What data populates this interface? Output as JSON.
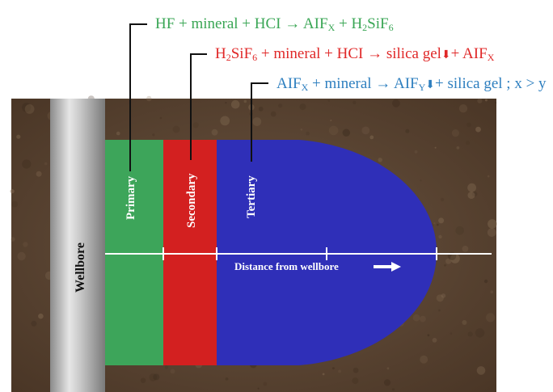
{
  "colors": {
    "green": "#3da55a",
    "red": "#d32020",
    "blue": "#2f2fb8",
    "eq_green": "#3aa655",
    "eq_red": "#e02828",
    "eq_blue": "#2e7fbf",
    "rock": "#5d4632",
    "wellbore": "#bdbdbd"
  },
  "equations": [
    {
      "name": "primary-reaction",
      "color": "#3aa655",
      "parts": [
        {
          "t": "HF + mineral + HCI  "
        },
        {
          "t": "→",
          "c": "arrow"
        },
        {
          "t": "  AIF"
        },
        {
          "t": "X",
          "c": "sub"
        },
        {
          "t": " + H"
        },
        {
          "t": "2",
          "c": "sub"
        },
        {
          "t": "SiF"
        },
        {
          "t": "6",
          "c": "sub"
        }
      ]
    },
    {
      "name": "secondary-reaction",
      "color": "#e02828",
      "parts": [
        {
          "t": "H"
        },
        {
          "t": "2",
          "c": "sub"
        },
        {
          "t": "SiF"
        },
        {
          "t": "6",
          "c": "sub"
        },
        {
          "t": " + mineral + HCI "
        },
        {
          "t": "→",
          "c": "arrow"
        },
        {
          "t": " silica gel"
        },
        {
          "t": "⬇",
          "c": "down"
        },
        {
          "t": "+ AIF"
        },
        {
          "t": "X",
          "c": "sub"
        }
      ]
    },
    {
      "name": "tertiary-reaction",
      "color": "#2e7fbf",
      "parts": [
        {
          "t": "AIF"
        },
        {
          "t": "X",
          "c": "sub"
        },
        {
          "t": " + mineral "
        },
        {
          "t": "→",
          "c": "arrow"
        },
        {
          "t": " AIF"
        },
        {
          "t": "Y",
          "c": "sub"
        },
        {
          "t": "⬇",
          "c": "down"
        },
        {
          "t": "+ silica gel ; x > y"
        }
      ]
    }
  ],
  "zones": {
    "primary": "Primary",
    "secondary": "Secondary",
    "tertiary": "Tertiary"
  },
  "wellbore_label": "Wellbore",
  "distance_label": "Distance from wellbore"
}
